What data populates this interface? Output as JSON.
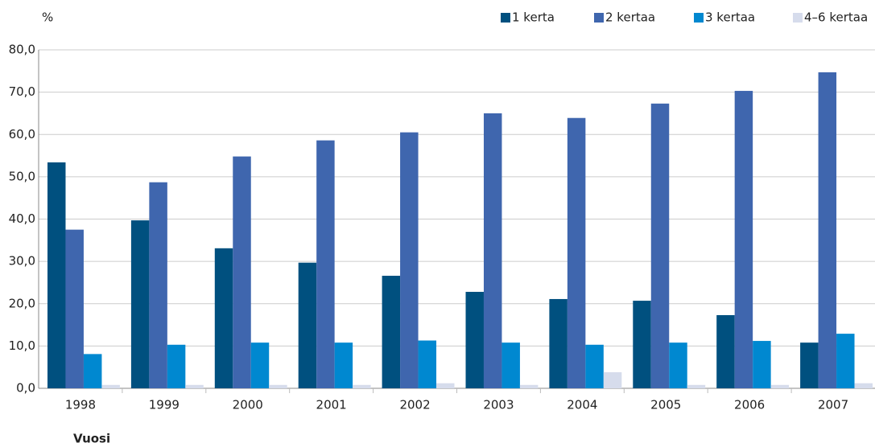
{
  "chart_data": {
    "type": "bar",
    "title": "%",
    "x_label": "Vuosi",
    "categories": [
      "1998",
      "1999",
      "2000",
      "2001",
      "2002",
      "2003",
      "2004",
      "2005",
      "2006",
      "2007"
    ],
    "series": [
      {
        "name": "1 kerta",
        "color": "#00507f",
        "values": [
          53.4,
          39.7,
          33.1,
          29.7,
          26.6,
          22.8,
          21.1,
          20.7,
          17.3,
          10.8
        ]
      },
      {
        "name": "2 kertaa",
        "color": "#3f66ae",
        "values": [
          37.5,
          48.7,
          54.8,
          58.6,
          60.5,
          65.0,
          63.9,
          67.3,
          70.3,
          74.7
        ]
      },
      {
        "name": "3 kertaa",
        "color": "#0088d0",
        "values": [
          8.1,
          10.3,
          10.8,
          10.8,
          11.3,
          10.8,
          10.3,
          10.8,
          11.2,
          12.9
        ]
      },
      {
        "name": "4–6 kertaa",
        "color": "#d6dcec",
        "values": [
          0.8,
          0.8,
          0.8,
          0.8,
          1.2,
          0.8,
          3.8,
          0.8,
          0.8,
          1.2
        ]
      }
    ],
    "ylim": [
      0,
      80
    ],
    "yticks": [
      {
        "value": 0,
        "label": "0,0"
      },
      {
        "value": 10,
        "label": "10,0"
      },
      {
        "value": 20,
        "label": "20,0"
      },
      {
        "value": 30,
        "label": "30,0"
      },
      {
        "value": 40,
        "label": "40,0"
      },
      {
        "value": 50,
        "label": "50,0"
      },
      {
        "value": 60,
        "label": "60,0"
      },
      {
        "value": 70,
        "label": "70,0"
      },
      {
        "value": 80,
        "label": "80,0"
      }
    ],
    "grid": true,
    "legend": "top-right"
  }
}
